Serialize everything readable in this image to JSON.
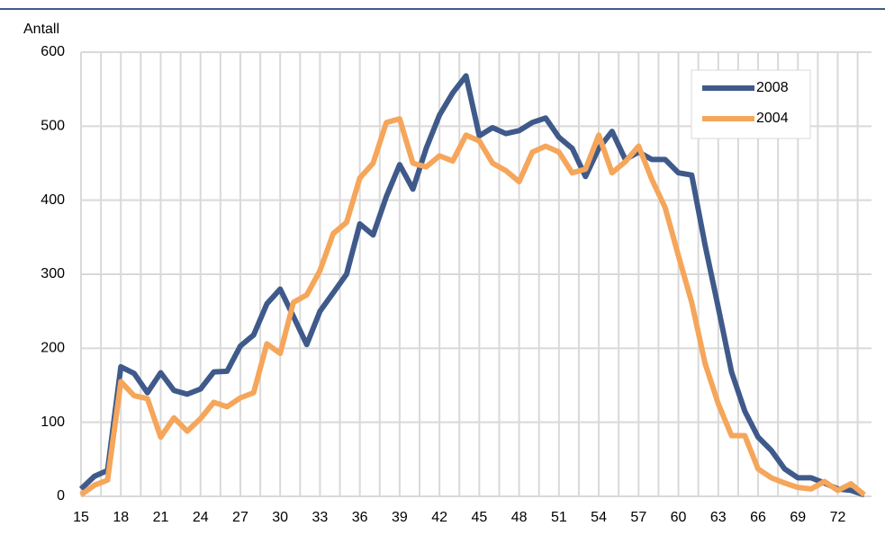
{
  "chart_data": {
    "type": "line",
    "y_label": "Antall",
    "x": [
      15,
      16,
      17,
      18,
      19,
      20,
      21,
      22,
      23,
      24,
      25,
      26,
      27,
      28,
      29,
      30,
      31,
      32,
      33,
      34,
      35,
      36,
      37,
      38,
      39,
      40,
      41,
      42,
      43,
      44,
      45,
      46,
      47,
      48,
      49,
      50,
      51,
      52,
      53,
      54,
      55,
      56,
      57,
      58,
      59,
      60,
      61,
      62,
      63,
      64,
      65,
      66,
      67,
      68,
      69,
      70,
      71,
      72,
      73,
      74
    ],
    "series": [
      {
        "name": "2008",
        "color": "#3f5a8a",
        "values": [
          10,
          27,
          35,
          175,
          166,
          140,
          167,
          143,
          138,
          145,
          168,
          169,
          203,
          218,
          260,
          280,
          243,
          205,
          250,
          275,
          300,
          368,
          353,
          405,
          448,
          415,
          470,
          515,
          545,
          568,
          487,
          498,
          490,
          494,
          505,
          511,
          485,
          470,
          432,
          470,
          493,
          455,
          465,
          455,
          455,
          437,
          434,
          340,
          255,
          168,
          115,
          80,
          62,
          37,
          25,
          25,
          18,
          10,
          8,
          2
        ]
      },
      {
        "name": "2004",
        "color": "#f5a65b",
        "values": [
          2,
          15,
          22,
          155,
          136,
          132,
          80,
          106,
          88,
          105,
          127,
          121,
          133,
          140,
          206,
          193,
          262,
          272,
          305,
          355,
          370,
          430,
          450,
          505,
          510,
          450,
          445,
          460,
          453,
          488,
          480,
          450,
          440,
          425,
          465,
          473,
          465,
          437,
          442,
          488,
          437,
          452,
          473,
          428,
          390,
          325,
          262,
          180,
          125,
          82,
          82,
          37,
          25,
          18,
          12,
          10,
          20,
          8,
          17,
          2
        ]
      }
    ],
    "xlim": [
      15,
      74
    ],
    "xticks": [
      15,
      18,
      21,
      24,
      27,
      30,
      33,
      36,
      39,
      42,
      45,
      48,
      51,
      54,
      57,
      60,
      63,
      66,
      69,
      72
    ],
    "ylim": [
      0,
      600
    ],
    "yticks": [
      0,
      100,
      200,
      300,
      400,
      500,
      600
    ],
    "grid": true,
    "legend": "top-right"
  }
}
